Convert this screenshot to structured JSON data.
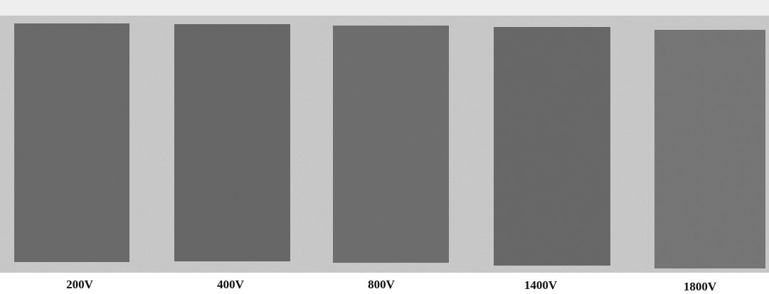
{
  "samples": {
    "labels": [
      "200V",
      "400V",
      "800V",
      "1400V",
      "1800V"
    ]
  }
}
